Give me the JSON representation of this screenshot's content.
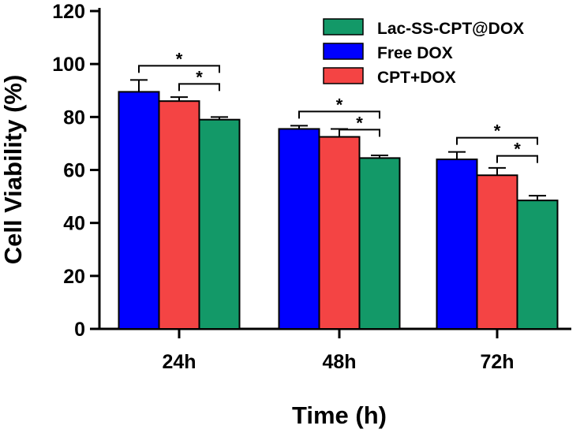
{
  "chart_data": {
    "type": "bar",
    "title": "",
    "xlabel": "Time (h)",
    "ylabel": "Cell Viability (%)",
    "ylim": [
      0,
      120
    ],
    "yticks": [
      0,
      20,
      40,
      60,
      80,
      100,
      120
    ],
    "categories": [
      "24h",
      "48h",
      "72h"
    ],
    "series": [
      {
        "name": "Free DOX",
        "color": "#0000ff",
        "values": [
          89.5,
          75.5,
          64.0
        ],
        "errors": [
          4.5,
          1.2,
          2.8
        ]
      },
      {
        "name": "CPT+DOX",
        "color": "#f44444",
        "values": [
          86.0,
          72.5,
          58.0
        ],
        "errors": [
          1.5,
          3.0,
          2.8
        ]
      },
      {
        "name": "Lac-SS-CPT@DOX",
        "color": "#139968",
        "values": [
          79.0,
          64.5,
          48.5
        ],
        "errors": [
          1.0,
          1.0,
          1.8
        ]
      }
    ],
    "legend_order": [
      "Lac-SS-CPT@DOX",
      "Free DOX",
      "CPT+DOX"
    ],
    "legend_position": "top-right",
    "significance": [
      {
        "category": "24h",
        "from_series": "Free DOX",
        "to_series": "Lac-SS-CPT@DOX",
        "label": "*"
      },
      {
        "category": "24h",
        "from_series": "CPT+DOX",
        "to_series": "Lac-SS-CPT@DOX",
        "label": "*"
      },
      {
        "category": "48h",
        "from_series": "Free DOX",
        "to_series": "Lac-SS-CPT@DOX",
        "label": "*"
      },
      {
        "category": "48h",
        "from_series": "CPT+DOX",
        "to_series": "Lac-SS-CPT@DOX",
        "label": "*"
      },
      {
        "category": "72h",
        "from_series": "Free DOX",
        "to_series": "Lac-SS-CPT@DOX",
        "label": "*"
      },
      {
        "category": "72h",
        "from_series": "CPT+DOX",
        "to_series": "Lac-SS-CPT@DOX",
        "label": "*"
      }
    ]
  }
}
